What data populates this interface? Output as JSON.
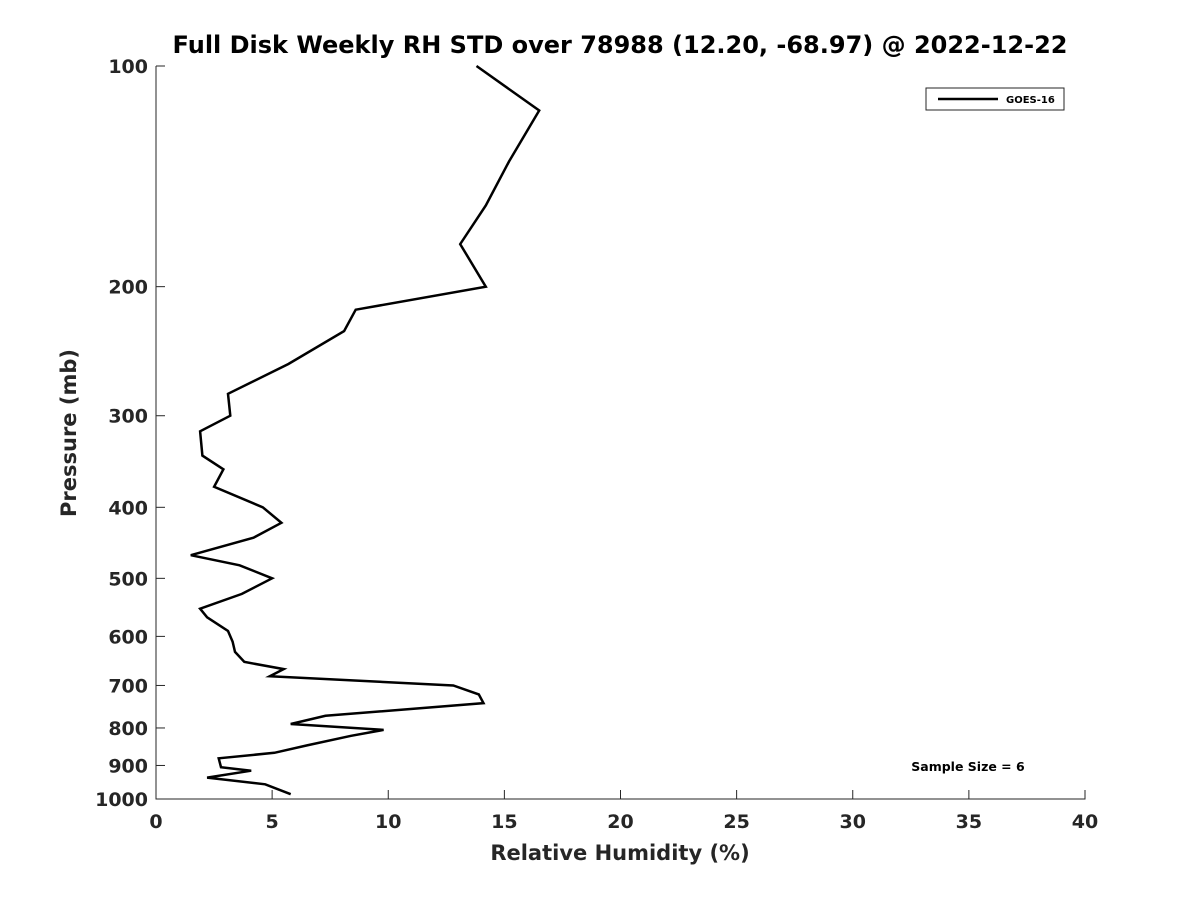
{
  "chart_data": {
    "type": "line",
    "title": "Full Disk Weekly RH STD over 78988 (12.20, -68.97) @ 2022-12-22",
    "xlabel": "Relative Humidity (%)",
    "ylabel": "Pressure (mb)",
    "xlim": [
      0,
      40
    ],
    "ylim": [
      1000,
      100
    ],
    "y_scale": "log",
    "y_reversed": true,
    "x_ticks": [
      "0",
      "5",
      "10",
      "15",
      "20",
      "25",
      "30",
      "35",
      "40"
    ],
    "y_ticks": [
      "100",
      "200",
      "300",
      "400",
      "500",
      "600",
      "700",
      "800",
      "900",
      "1000"
    ],
    "grid": false,
    "legend": {
      "position": "top-right",
      "entries": [
        "GOES-16"
      ]
    },
    "annotation": "Sample Size = 6",
    "series": [
      {
        "name": "GOES-16",
        "color": "#000000",
        "points": [
          [
            13.8,
            100
          ],
          [
            16.5,
            115
          ],
          [
            15.2,
            135
          ],
          [
            14.2,
            155
          ],
          [
            13.1,
            175
          ],
          [
            14.2,
            200
          ],
          [
            8.6,
            215
          ],
          [
            8.1,
            230
          ],
          [
            5.7,
            255
          ],
          [
            3.1,
            280
          ],
          [
            3.2,
            300
          ],
          [
            1.9,
            315
          ],
          [
            2.0,
            340
          ],
          [
            2.9,
            355
          ],
          [
            2.5,
            375
          ],
          [
            4.6,
            400
          ],
          [
            5.4,
            420
          ],
          [
            4.2,
            440
          ],
          [
            1.5,
            465
          ],
          [
            3.6,
            480
          ],
          [
            5.0,
            500
          ],
          [
            3.7,
            525
          ],
          [
            1.9,
            550
          ],
          [
            2.2,
            565
          ],
          [
            3.1,
            590
          ],
          [
            3.3,
            610
          ],
          [
            3.4,
            630
          ],
          [
            3.8,
            650
          ],
          [
            5.5,
            665
          ],
          [
            4.9,
            680
          ],
          [
            12.8,
            700
          ],
          [
            13.9,
            720
          ],
          [
            14.1,
            740
          ],
          [
            7.3,
            770
          ],
          [
            5.8,
            790
          ],
          [
            9.8,
            805
          ],
          [
            8.4,
            820
          ],
          [
            6.5,
            845
          ],
          [
            5.1,
            865
          ],
          [
            2.7,
            880
          ],
          [
            2.8,
            905
          ],
          [
            4.1,
            915
          ],
          [
            2.2,
            935
          ],
          [
            4.7,
            955
          ],
          [
            5.8,
            985
          ]
        ]
      }
    ]
  }
}
